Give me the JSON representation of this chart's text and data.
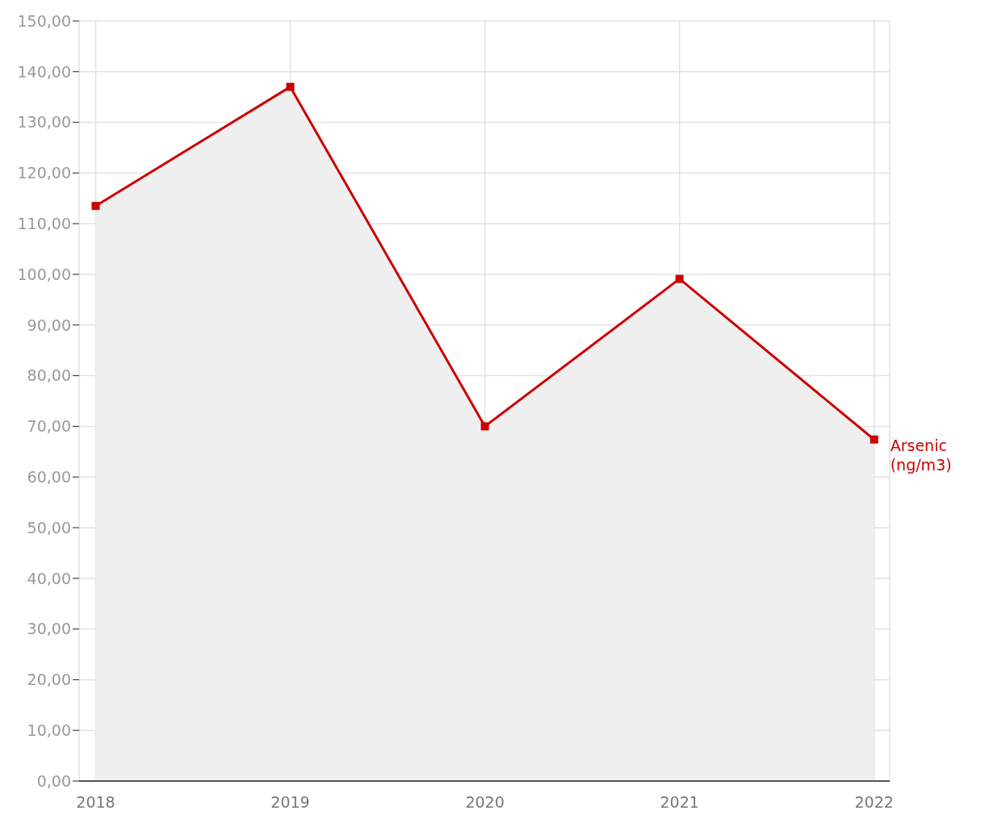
{
  "chart_data": {
    "type": "area",
    "categories": [
      "2018",
      "2019",
      "2020",
      "2021",
      "2022"
    ],
    "series": [
      {
        "name": "Arsenic (ng/m3)",
        "color": "#cc0000",
        "values": [
          113.5,
          137,
          70,
          99.1,
          67.4
        ]
      }
    ],
    "ylim": [
      0,
      150
    ],
    "yticks": [
      {
        "value": 0,
        "label": "0,00"
      },
      {
        "value": 10,
        "label": "10,00"
      },
      {
        "value": 20,
        "label": "20,00"
      },
      {
        "value": 30,
        "label": "30,00"
      },
      {
        "value": 40,
        "label": "40,00"
      },
      {
        "value": 50,
        "label": "50,00"
      },
      {
        "value": 60,
        "label": "60,00"
      },
      {
        "value": 70,
        "label": "70,00"
      },
      {
        "value": 80,
        "label": "80,00"
      },
      {
        "value": 90,
        "label": "90,00"
      },
      {
        "value": 100,
        "label": "100,00"
      },
      {
        "value": 110,
        "label": "110,00"
      },
      {
        "value": 120,
        "label": "120,00"
      },
      {
        "value": 130,
        "label": "130,00"
      },
      {
        "value": 140,
        "label": "140,00"
      },
      {
        "value": 150,
        "label": "150,00"
      }
    ],
    "grid": true,
    "marker": "square"
  }
}
